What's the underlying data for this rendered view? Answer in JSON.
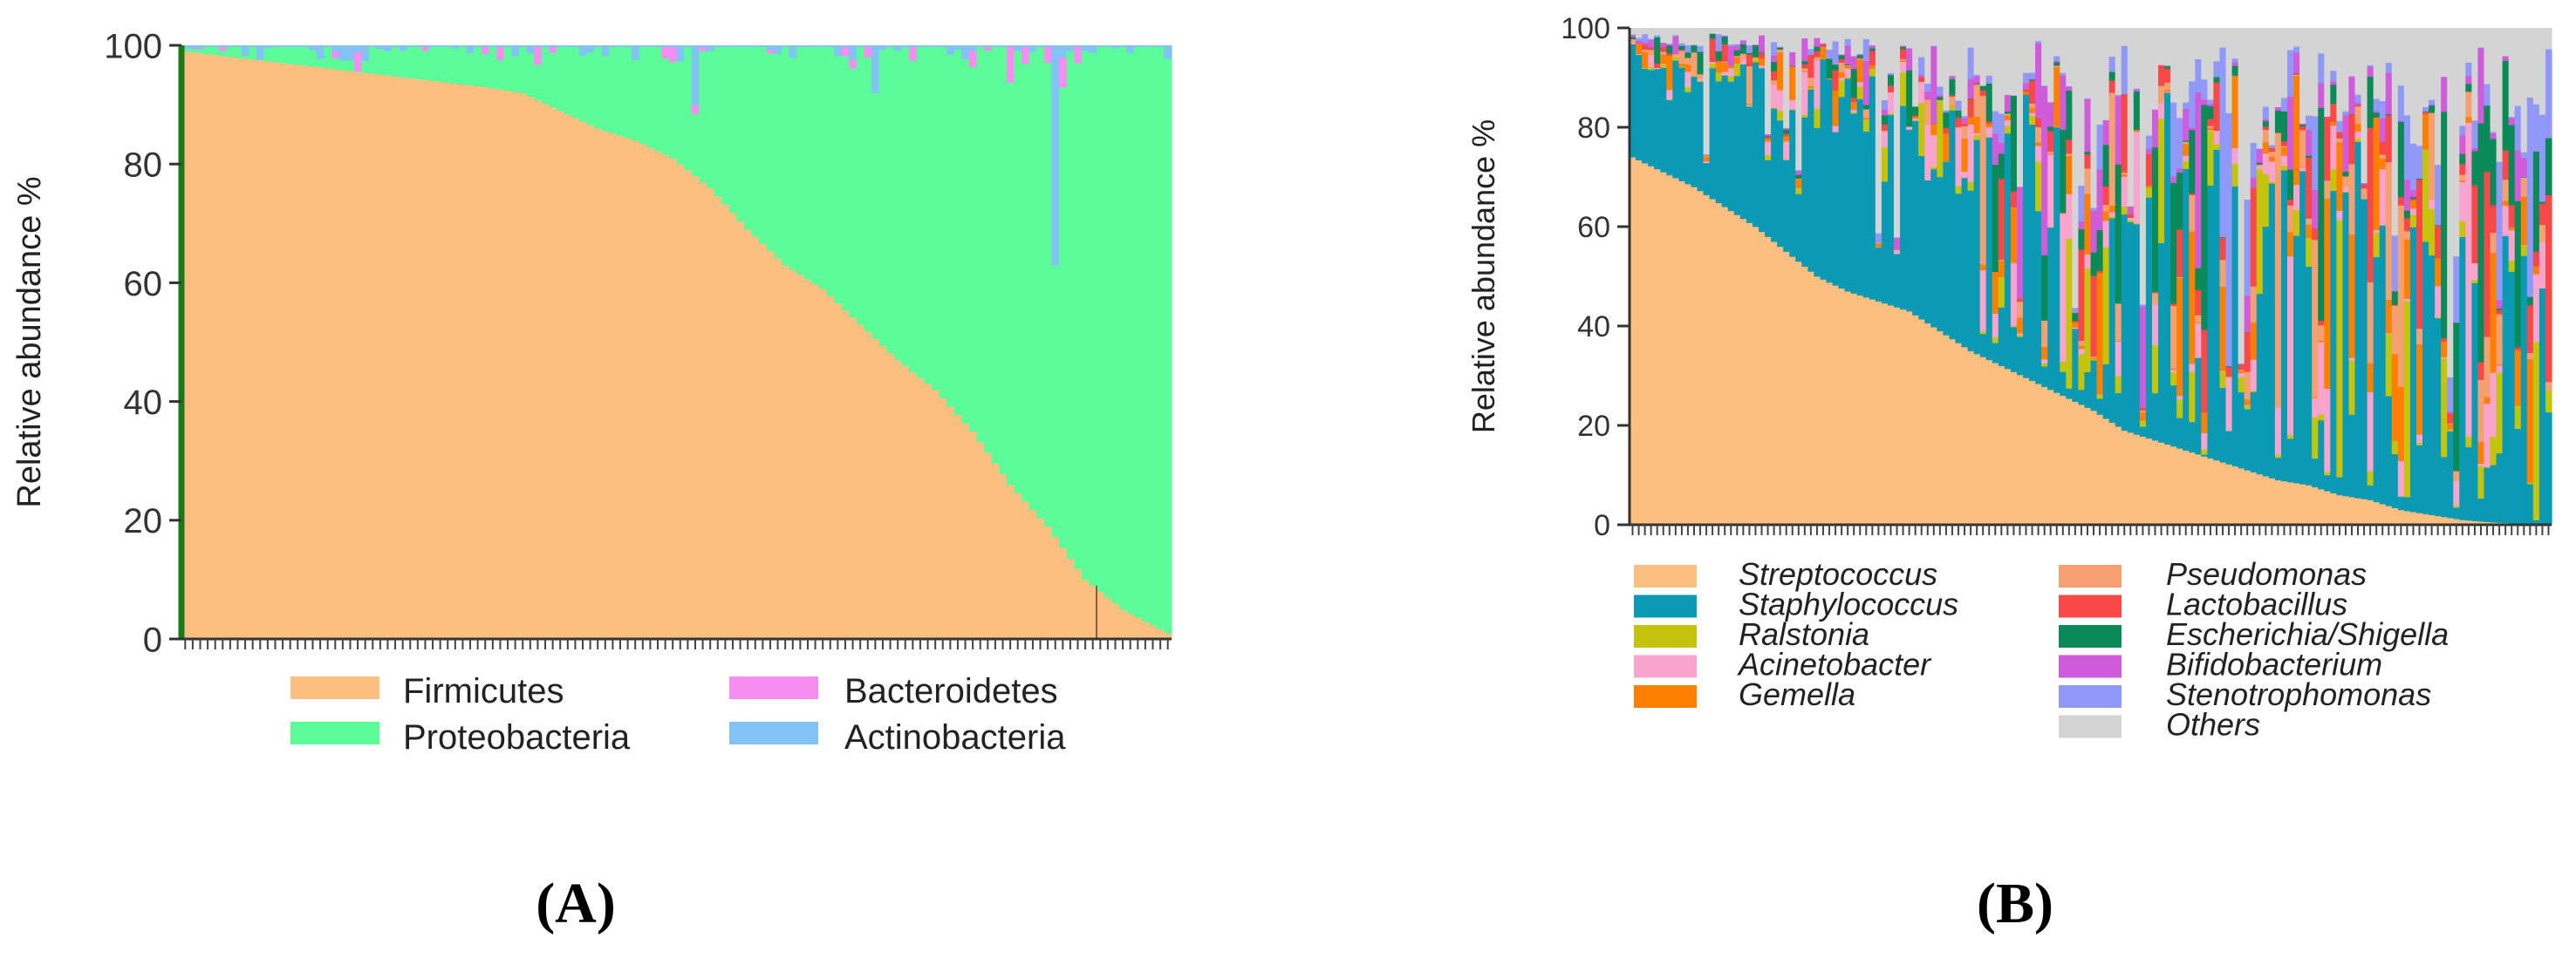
{
  "chart_data": [
    {
      "panel": "(A)",
      "type": "bar",
      "stacked": true,
      "n_samples": 132,
      "ylabel": "Relative abundance %",
      "xlabel": "",
      "ylim": [
        0,
        100
      ],
      "yticks": [
        0,
        20,
        40,
        60,
        80,
        100
      ],
      "grid": false,
      "legend_position": "bottom",
      "colors": {
        "Firmicutes": "#fdbf80",
        "Proteobacteria": "#5cfc98",
        "Bacteroidetes": "#f58ef0",
        "Actinobacteria": "#82c2f4"
      },
      "legend": [
        "Firmicutes",
        "Proteobacteria",
        "Bacteroidetes",
        "Actinobacteria"
      ],
      "firmicutes_profile": [
        [
          0,
          99
        ],
        [
          10,
          97.5
        ],
        [
          20,
          96
        ],
        [
          30,
          94.5
        ],
        [
          40,
          93
        ],
        [
          45,
          92
        ],
        [
          50,
          89
        ],
        [
          55,
          86
        ],
        [
          60,
          84
        ],
        [
          65,
          81
        ],
        [
          70,
          76
        ],
        [
          75,
          69
        ],
        [
          80,
          63
        ],
        [
          85,
          59
        ],
        [
          90,
          53
        ],
        [
          95,
          47
        ],
        [
          100,
          42
        ],
        [
          105,
          35
        ],
        [
          110,
          26
        ],
        [
          115,
          19
        ],
        [
          120,
          10
        ],
        [
          125,
          5
        ],
        [
          131,
          1
        ]
      ],
      "note": "Samples sorted by decreasing Firmicutes abundance; Proteobacteria fills most of the remainder, with small Bacteroidetes and Actinobacteria slivers near 100%."
    },
    {
      "panel": "(B)",
      "type": "bar",
      "stacked": true,
      "n_samples": 150,
      "ylabel": "Relative abundance %",
      "xlabel": "",
      "ylim": [
        0,
        100
      ],
      "yticks": [
        0,
        20,
        40,
        60,
        80,
        100
      ],
      "grid": false,
      "legend_position": "bottom",
      "colors": {
        "Streptococcus": "#fdbf80",
        "Staphylococcus": "#0a9ab4",
        "Ralstonia": "#c4c40c",
        "Acinetobacter": "#f9a4cc",
        "Gemella": "#ff7f00",
        "Pseudomonas": "#f4a070",
        "Lactobacillus": "#f84848",
        "Escherichia/Shigella": "#0a8a58",
        "Bifidobacterium": "#d05cdc",
        "Stenotrophomonas": "#9098f8",
        "Others": "#d4d4d4"
      },
      "legend_left": [
        "Streptococcus",
        "Staphylococcus",
        "Ralstonia",
        "Acinetobacter",
        "Gemella"
      ],
      "legend_right": [
        "Pseudomonas",
        "Lactobacillus",
        "Escherichia/Shigella",
        "Bifidobacterium",
        "Stenotrophomonas",
        "Others"
      ],
      "streptococcus_profile": [
        [
          0,
          74
        ],
        [
          5,
          71
        ],
        [
          10,
          68
        ],
        [
          15,
          64
        ],
        [
          20,
          60
        ],
        [
          25,
          55
        ],
        [
          30,
          50
        ],
        [
          35,
          47
        ],
        [
          40,
          45
        ],
        [
          45,
          43
        ],
        [
          50,
          39
        ],
        [
          55,
          35
        ],
        [
          60,
          32
        ],
        [
          65,
          29
        ],
        [
          70,
          26
        ],
        [
          75,
          23
        ],
        [
          80,
          19
        ],
        [
          85,
          17
        ],
        [
          90,
          15
        ],
        [
          95,
          13
        ],
        [
          100,
          11
        ],
        [
          105,
          9
        ],
        [
          110,
          8
        ],
        [
          115,
          6
        ],
        [
          120,
          5
        ],
        [
          125,
          3
        ],
        [
          130,
          2
        ],
        [
          135,
          1
        ],
        [
          140,
          0.5
        ],
        [
          149,
          0
        ]
      ],
      "note": "Samples sorted by decreasing Streptococcus abundance; remaining genera and Others stacked above."
    }
  ]
}
